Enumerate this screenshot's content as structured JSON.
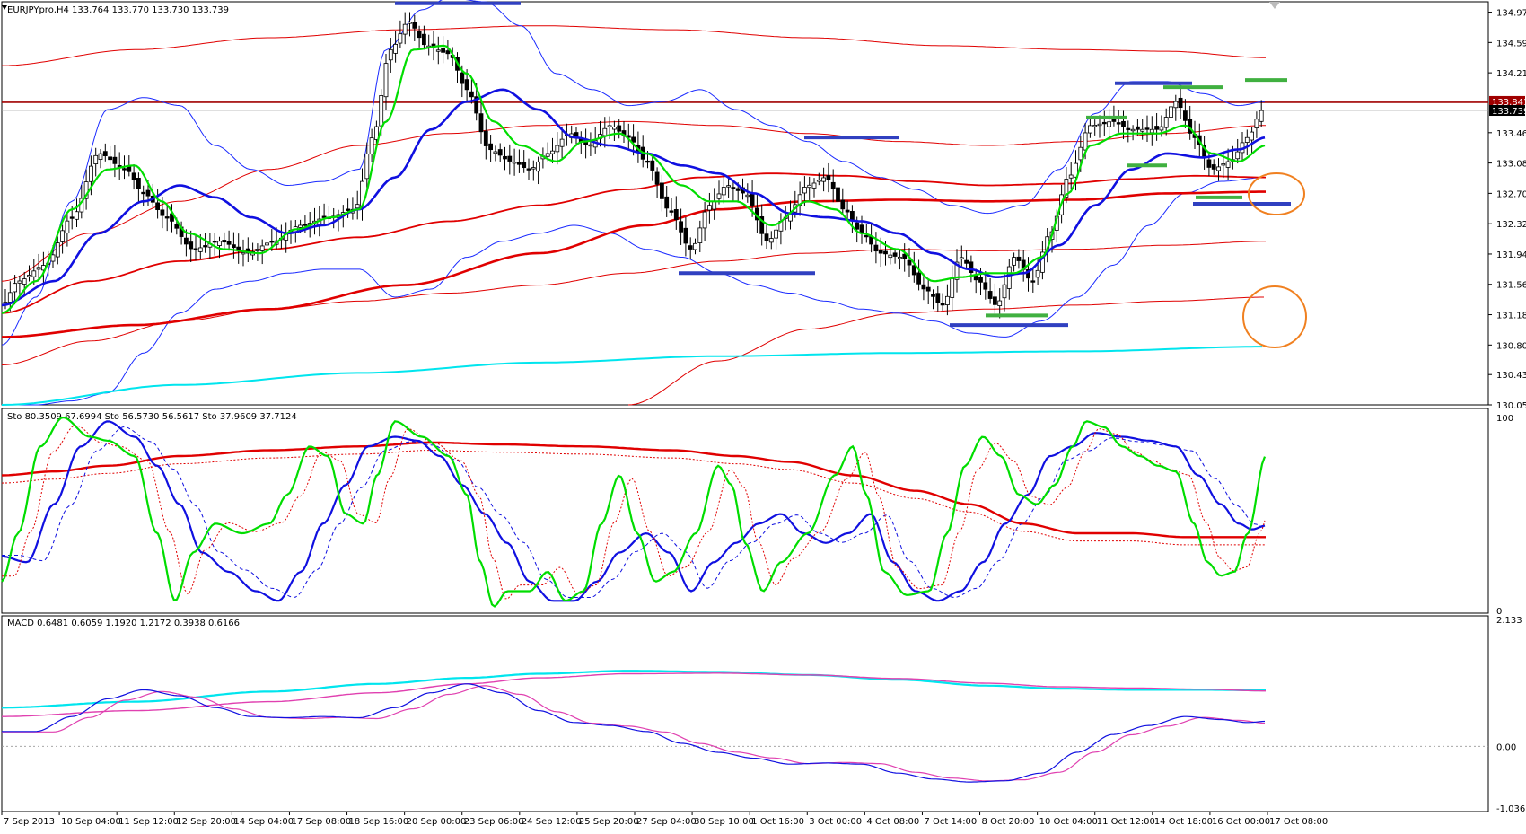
{
  "symbol_header": "EURJPYpro,H4  133.764 133.770 133.730 133.739",
  "price_panel": {
    "price_ticks": [
      "134.970",
      "134.590",
      "134.210",
      "133.841",
      "133.739",
      "133.460",
      "133.080",
      "132.700",
      "132.320",
      "131.940",
      "131.560",
      "131.180",
      "130.800",
      "130.430",
      "130.050"
    ],
    "current_bid": "133.739",
    "resistance_level": "133.841",
    "y_range": [
      130.05,
      135.1
    ],
    "ma_colors": {
      "fast": "#00dd00",
      "mid": "#1010e0",
      "slow": "#e00000",
      "long": "#00e5ee",
      "bands": "#2030ff",
      "env": "#ff2020"
    },
    "annotation_circles": 2
  },
  "stoch_panel": {
    "header": "Sto 80.3509 67.6994   Sto 56.5730 56.5617   Sto 37.9609 37.7124",
    "ticks": [
      "100",
      "0"
    ]
  },
  "macd_panel": {
    "header": "MACD 0.6481 0.6059 1.1920 1.2172 0.3938 0.6166",
    "ticks": [
      "2.133",
      "0.00",
      "-1.0363"
    ]
  },
  "time_axis": [
    "7 Sep 2013",
    "10 Sep 04:00",
    "11 Sep 12:00",
    "12 Sep 20:00",
    "14 Sep 04:00",
    "17 Sep 08:00",
    "18 Sep 16:00",
    "20 Sep 00:00",
    "23 Sep 06:00",
    "24 Sep 12:00",
    "25 Sep 20:00",
    "27 Sep 04:00",
    "30 Sep 10:00",
    "1 Oct 16:00",
    "3 Oct 00:00",
    "4 Oct 08:00",
    "7 Oct 14:00",
    "8 Oct 20:00",
    "10 Oct 04:00",
    "11 Oct 12:00",
    "14 Oct 18:00",
    "16 Oct 00:00",
    "17 Oct 08:00"
  ]
}
